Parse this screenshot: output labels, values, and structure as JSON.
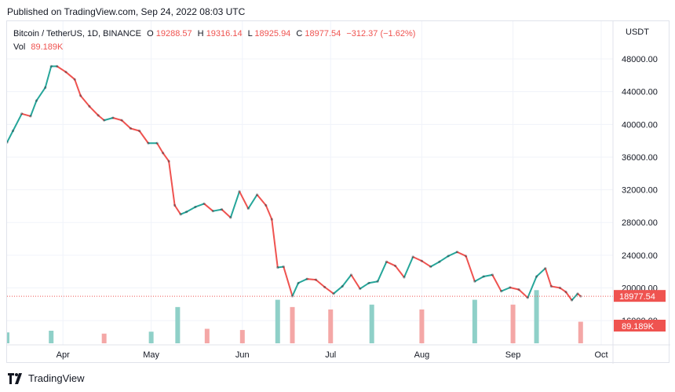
{
  "header": {
    "published": "Published on TradingView.com, Sep 24, 2022 08:03 UTC"
  },
  "legend": {
    "symbol": "Bitcoin / TetherUS, 1D, BINANCE",
    "o_label": "O",
    "o": "19288.57",
    "h_label": "H",
    "h": "19316.14",
    "l_label": "L",
    "l": "18925.94",
    "c_label": "C",
    "c": "18977.54",
    "change": "−312.37 (−1.62%)",
    "vol_label": "Vol",
    "vol": "89.189K"
  },
  "footer": {
    "brand": "TradingView",
    "logo_icon": "tradingview-logo-icon"
  },
  "colors": {
    "up": "#26a69a",
    "down": "#ef5350",
    "up_vol": "#8fd0c8",
    "down_vol": "#f4a7a6",
    "grid": "#f0f3fa",
    "text": "#131722"
  },
  "chart_data": {
    "type": "candlestick",
    "currency": "USDT",
    "yticks": [
      "48000.00",
      "44000.00",
      "40000.00",
      "36000.00",
      "32000.00",
      "28000.00",
      "24000.00",
      "20000.00",
      "16000.00"
    ],
    "ylim": [
      14000,
      50500
    ],
    "x_labels": [
      "Apr",
      "May",
      "Jun",
      "Jul",
      "Aug",
      "Sep",
      "Oct"
    ],
    "x_label_dates": [
      "2022-04-01",
      "2022-05-01",
      "2022-06-01",
      "2022-07-01",
      "2022-08-01",
      "2022-09-01",
      "2022-10-01"
    ],
    "x_range": [
      "2022-03-13",
      "2022-10-05"
    ],
    "last_price": "18977.54",
    "last_volume": "89.189K",
    "closes": [
      {
        "date": "2022-03-13",
        "close": 37800
      },
      {
        "date": "2022-03-15",
        "close": 39200
      },
      {
        "date": "2022-03-18",
        "close": 41300
      },
      {
        "date": "2022-03-21",
        "close": 41000
      },
      {
        "date": "2022-03-23",
        "close": 42900
      },
      {
        "date": "2022-03-26",
        "close": 44500
      },
      {
        "date": "2022-03-28",
        "close": 47100
      },
      {
        "date": "2022-03-30",
        "close": 47100
      },
      {
        "date": "2022-04-02",
        "close": 46400
      },
      {
        "date": "2022-04-05",
        "close": 45500
      },
      {
        "date": "2022-04-07",
        "close": 43500
      },
      {
        "date": "2022-04-10",
        "close": 42200
      },
      {
        "date": "2022-04-13",
        "close": 41100
      },
      {
        "date": "2022-04-15",
        "close": 40500
      },
      {
        "date": "2022-04-18",
        "close": 40800
      },
      {
        "date": "2022-04-21",
        "close": 40500
      },
      {
        "date": "2022-04-24",
        "close": 39500
      },
      {
        "date": "2022-04-27",
        "close": 39200
      },
      {
        "date": "2022-04-30",
        "close": 37700
      },
      {
        "date": "2022-05-03",
        "close": 37700
      },
      {
        "date": "2022-05-05",
        "close": 36500
      },
      {
        "date": "2022-05-07",
        "close": 35500
      },
      {
        "date": "2022-05-09",
        "close": 30100
      },
      {
        "date": "2022-05-11",
        "close": 29000
      },
      {
        "date": "2022-05-13",
        "close": 29300
      },
      {
        "date": "2022-05-16",
        "close": 29900
      },
      {
        "date": "2022-05-19",
        "close": 30300
      },
      {
        "date": "2022-05-22",
        "close": 29400
      },
      {
        "date": "2022-05-25",
        "close": 29600
      },
      {
        "date": "2022-05-28",
        "close": 28600
      },
      {
        "date": "2022-05-31",
        "close": 31800
      },
      {
        "date": "2022-06-03",
        "close": 29700
      },
      {
        "date": "2022-06-06",
        "close": 31400
      },
      {
        "date": "2022-06-09",
        "close": 30100
      },
      {
        "date": "2022-06-11",
        "close": 28400
      },
      {
        "date": "2022-06-13",
        "close": 22500
      },
      {
        "date": "2022-06-15",
        "close": 22600
      },
      {
        "date": "2022-06-18",
        "close": 19000
      },
      {
        "date": "2022-06-20",
        "close": 20600
      },
      {
        "date": "2022-06-23",
        "close": 21100
      },
      {
        "date": "2022-06-26",
        "close": 21000
      },
      {
        "date": "2022-06-29",
        "close": 20100
      },
      {
        "date": "2022-07-02",
        "close": 19300
      },
      {
        "date": "2022-07-05",
        "close": 20200
      },
      {
        "date": "2022-07-08",
        "close": 21600
      },
      {
        "date": "2022-07-11",
        "close": 19900
      },
      {
        "date": "2022-07-14",
        "close": 20600
      },
      {
        "date": "2022-07-17",
        "close": 20800
      },
      {
        "date": "2022-07-20",
        "close": 23200
      },
      {
        "date": "2022-07-23",
        "close": 22700
      },
      {
        "date": "2022-07-26",
        "close": 21300
      },
      {
        "date": "2022-07-29",
        "close": 23800
      },
      {
        "date": "2022-08-01",
        "close": 23300
      },
      {
        "date": "2022-08-04",
        "close": 22600
      },
      {
        "date": "2022-08-07",
        "close": 23200
      },
      {
        "date": "2022-08-10",
        "close": 23900
      },
      {
        "date": "2022-08-13",
        "close": 24400
      },
      {
        "date": "2022-08-16",
        "close": 23900
      },
      {
        "date": "2022-08-19",
        "close": 20800
      },
      {
        "date": "2022-08-22",
        "close": 21400
      },
      {
        "date": "2022-08-25",
        "close": 21600
      },
      {
        "date": "2022-08-28",
        "close": 19600
      },
      {
        "date": "2022-08-31",
        "close": 20050
      },
      {
        "date": "2022-09-03",
        "close": 19800
      },
      {
        "date": "2022-09-06",
        "close": 18800
      },
      {
        "date": "2022-09-09",
        "close": 21400
      },
      {
        "date": "2022-09-12",
        "close": 22400
      },
      {
        "date": "2022-09-14",
        "close": 20200
      },
      {
        "date": "2022-09-17",
        "close": 20000
      },
      {
        "date": "2022-09-19",
        "close": 19500
      },
      {
        "date": "2022-09-21",
        "close": 18500
      },
      {
        "date": "2022-09-23",
        "close": 19300
      },
      {
        "date": "2022-09-24",
        "close": 18978
      }
    ],
    "volume_lim": [
      0,
      260000
    ],
    "volumes": [
      {
        "date": "2022-03-13",
        "volume": 45000
      },
      {
        "date": "2022-03-28",
        "volume": 52000
      },
      {
        "date": "2022-04-15",
        "volume": 40000
      },
      {
        "date": "2022-05-01",
        "volume": 48000
      },
      {
        "date": "2022-05-10",
        "volume": 150000
      },
      {
        "date": "2022-05-20",
        "volume": 60000
      },
      {
        "date": "2022-06-01",
        "volume": 55000
      },
      {
        "date": "2022-06-13",
        "volume": 180000
      },
      {
        "date": "2022-06-18",
        "volume": 150000
      },
      {
        "date": "2022-07-01",
        "volume": 140000
      },
      {
        "date": "2022-07-15",
        "volume": 160000
      },
      {
        "date": "2022-08-01",
        "volume": 140000
      },
      {
        "date": "2022-08-19",
        "volume": 180000
      },
      {
        "date": "2022-09-01",
        "volume": 160000
      },
      {
        "date": "2022-09-09",
        "volume": 220000
      },
      {
        "date": "2022-09-24",
        "volume": 89189
      }
    ]
  }
}
